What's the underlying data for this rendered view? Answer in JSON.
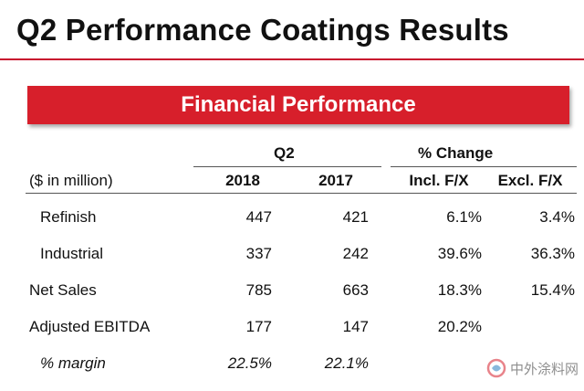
{
  "title": "Q2 Performance Coatings Results",
  "banner": "Financial Performance",
  "table": {
    "group_headers": {
      "q2": "Q2",
      "pct_change": "% Change"
    },
    "unit_label": "($ in million)",
    "columns": [
      "2018",
      "2017",
      "Incl. F/X",
      "Excl. F/X"
    ],
    "rows": [
      {
        "label": "Refinish",
        "v2018": "447",
        "v2017": "421",
        "incl": "6.1%",
        "excl": "3.4%"
      },
      {
        "label": "Industrial",
        "v2018": "337",
        "v2017": "242",
        "incl": "39.6%",
        "excl": "36.3%"
      },
      {
        "label": "Net Sales",
        "v2018": "785",
        "v2017": "663",
        "incl": "18.3%",
        "excl": "15.4%"
      },
      {
        "label": "Adjusted EBITDA",
        "v2018": "177",
        "v2017": "147",
        "incl": "20.2%",
        "excl": ""
      },
      {
        "label": "% margin",
        "v2018": "22.5%",
        "v2017": "22.1%",
        "incl": "",
        "excl": ""
      }
    ]
  },
  "watermark": {
    "text": "中外涂料网",
    "icon": "coatings-logo-icon",
    "color": "#d71f2b"
  },
  "colors": {
    "accent": "#d71f2b",
    "title_rule": "#c8102e"
  }
}
